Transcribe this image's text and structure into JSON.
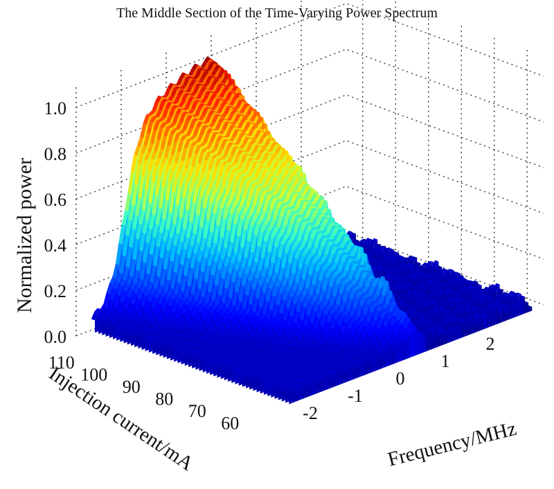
{
  "chart_data": {
    "type": "surface3d",
    "title": "The Middle Section of the Time-Varying Power Spectrum",
    "zlabel": "Normalized power",
    "xlabel": "Frequency/MHz",
    "ylabel": "Injection current/mA",
    "z_ticks": [
      "0.0",
      "0.2",
      "0.4",
      "0.6",
      "0.8",
      "1.0"
    ],
    "x_ticks": [
      "-2",
      "-1",
      "0",
      "1",
      "2"
    ],
    "y_ticks": [
      "60",
      "70",
      "80",
      "90",
      "100",
      "110"
    ],
    "zlim": [
      0,
      1.1
    ],
    "xlim": [
      -3,
      3
    ],
    "ylim": [
      55,
      115
    ],
    "grid": true,
    "colormap": "jet",
    "peak_frequency": 0,
    "peak_power_at_max_current": 1.0,
    "peak_power_at_min_current": 0.1,
    "colors": {
      "jet": [
        "#00008f",
        "#0000ff",
        "#0060ff",
        "#00bfff",
        "#40ffbf",
        "#bfff40",
        "#ffdf00",
        "#ff8000",
        "#ff2000",
        "#a00000"
      ]
    }
  }
}
